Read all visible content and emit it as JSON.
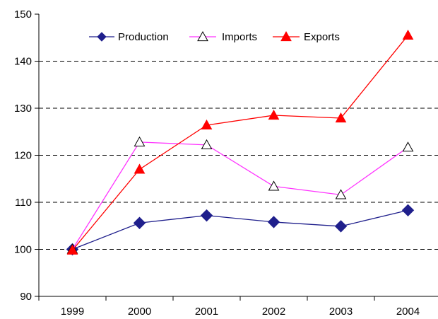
{
  "chart_data": {
    "type": "line",
    "title": "",
    "xlabel": "",
    "ylabel": "",
    "categories": [
      "1999",
      "2000",
      "2001",
      "2002",
      "2003",
      "2004"
    ],
    "ylim": [
      90,
      150
    ],
    "yticks": [
      "90",
      "100",
      "110",
      "120",
      "130",
      "140",
      "150"
    ],
    "grid": "horizontal dashed",
    "legend_position": "top-left",
    "series": [
      {
        "name": "Production",
        "values": [
          100,
          105.6,
          107.2,
          105.8,
          104.9,
          108.3
        ],
        "color": "#1f1f8c",
        "marker": "diamond-filled"
      },
      {
        "name": "Imports",
        "values": [
          100,
          122.8,
          122.2,
          113.4,
          111.6,
          121.7
        ],
        "color": "#ff33ff",
        "marker": "triangle-open"
      },
      {
        "name": "Exports",
        "values": [
          99.8,
          117.0,
          126.4,
          128.5,
          127.9,
          145.5
        ],
        "color": "#ff0000",
        "marker": "triangle-filled"
      }
    ]
  }
}
